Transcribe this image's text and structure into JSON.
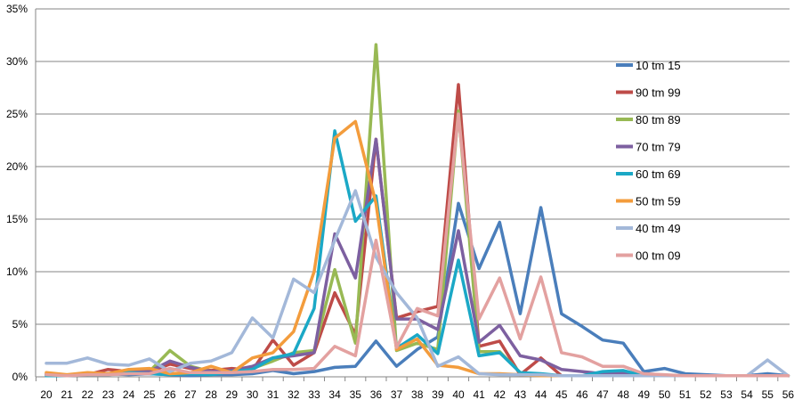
{
  "chart_data": {
    "type": "line",
    "title": "",
    "xlabel": "",
    "ylabel": "",
    "x": [
      20,
      21,
      22,
      23,
      24,
      25,
      26,
      27,
      28,
      29,
      30,
      31,
      32,
      33,
      34,
      35,
      36,
      37,
      38,
      39,
      40,
      41,
      42,
      43,
      44,
      45,
      46,
      47,
      48,
      49,
      50,
      51,
      52,
      53,
      54,
      55,
      56
    ],
    "ylim": [
      0,
      35
    ],
    "yticks": [
      0,
      5,
      10,
      15,
      20,
      25,
      30,
      35
    ],
    "ytick_suffix": "%",
    "grid": "horizontal",
    "legend_position": "right",
    "series": [
      {
        "name": "10 tm 15",
        "color": "#4a7ebb",
        "values": [
          0.2,
          0.1,
          0.3,
          0.3,
          0.2,
          0.3,
          0.2,
          0.1,
          0.2,
          0.2,
          0.3,
          0.6,
          0.3,
          0.5,
          0.9,
          1.0,
          3.4,
          1.0,
          2.6,
          3.8,
          16.5,
          10.3,
          14.7,
          6.0,
          16.1,
          6.0,
          4.8,
          3.5,
          3.2,
          0.5,
          0.8,
          0.3,
          0.2,
          0.1,
          0.1,
          0.3,
          0.1
        ]
      },
      {
        "name": "90 tm 99",
        "color": "#be4b48",
        "values": [
          0.3,
          0.1,
          0.2,
          0.7,
          0.5,
          0.5,
          1.2,
          0.8,
          0.6,
          0.8,
          0.6,
          3.5,
          1.1,
          2.3,
          8.0,
          4.0,
          22.6,
          5.6,
          6.2,
          6.7,
          27.8,
          2.9,
          3.4,
          0.2,
          1.8,
          0.1,
          0.1,
          0.1,
          0.1,
          0.1,
          0.1,
          0.1,
          0.1,
          0.1,
          0.1,
          0.1,
          0.1
        ]
      },
      {
        "name": "80 tm 89",
        "color": "#98b954",
        "values": [
          0.2,
          0.1,
          0.3,
          0.3,
          0.4,
          0.5,
          2.5,
          1.0,
          0.5,
          0.4,
          0.8,
          1.5,
          2.3,
          2.5,
          10.2,
          3.2,
          31.6,
          2.5,
          3.2,
          2.6,
          25.3,
          2.4,
          2.4,
          0.4,
          0.2,
          0.1,
          0.1,
          0.1,
          0.1,
          0.1,
          0.1,
          0.1,
          0.1,
          0.1,
          0.1,
          0.1,
          0.1
        ]
      },
      {
        "name": "70 tm 79",
        "color": "#7d60a0",
        "values": [
          0.2,
          0.1,
          0.3,
          0.3,
          0.5,
          0.5,
          1.5,
          0.9,
          0.5,
          0.6,
          1.0,
          1.8,
          2.0,
          2.3,
          13.6,
          9.4,
          22.6,
          5.5,
          5.5,
          4.5,
          13.9,
          3.3,
          4.9,
          2.0,
          1.6,
          0.7,
          0.5,
          0.3,
          0.4,
          0.1,
          0.1,
          0.1,
          0.1,
          0.1,
          0.1,
          0.1,
          0.1
        ]
      },
      {
        "name": "60 tm 69",
        "color": "#1ba8c6",
        "values": [
          0.1,
          0.1,
          0.2,
          0.2,
          0.4,
          0.3,
          0.2,
          0.3,
          0.2,
          0.5,
          0.7,
          1.8,
          2.2,
          6.5,
          23.4,
          14.8,
          17.2,
          2.7,
          4.0,
          2.2,
          11.1,
          2.0,
          2.3,
          0.4,
          0.3,
          0.1,
          0.1,
          0.5,
          0.6,
          0.1,
          0.1,
          0.1,
          0.1,
          0.1,
          0.1,
          0.1,
          0.1
        ]
      },
      {
        "name": "50 tm 59",
        "color": "#f39c3c",
        "values": [
          0.4,
          0.2,
          0.4,
          0.3,
          0.7,
          0.8,
          0.3,
          0.4,
          1.0,
          0.4,
          1.8,
          2.3,
          4.3,
          10.0,
          22.7,
          24.3,
          16.5,
          2.6,
          3.6,
          1.1,
          0.9,
          0.3,
          0.3,
          0.2,
          0.1,
          0.1,
          0.1,
          0.1,
          0.1,
          0.1,
          0.1,
          0.1,
          0.1,
          0.1,
          0.1,
          0.1,
          0.1
        ]
      },
      {
        "name": "40 tm 49",
        "color": "#a3b8d9",
        "values": [
          1.3,
          1.3,
          1.8,
          1.2,
          1.1,
          1.7,
          0.5,
          1.3,
          1.5,
          2.3,
          5.6,
          3.7,
          9.3,
          8.0,
          13.0,
          17.7,
          11.4,
          8.0,
          5.6,
          1.0,
          1.9,
          0.3,
          0.2,
          0.2,
          0.2,
          0.1,
          0.1,
          0.1,
          0.1,
          0.1,
          0.1,
          0.1,
          0.1,
          0.1,
          0.1,
          1.6,
          0.1
        ]
      },
      {
        "name": "00 tm 09",
        "color": "#e3a1a0",
        "values": [
          0.2,
          0.1,
          0.2,
          0.2,
          0.3,
          0.3,
          0.8,
          0.4,
          0.4,
          0.4,
          0.5,
          0.7,
          0.7,
          0.8,
          2.9,
          2.0,
          13.0,
          2.8,
          6.5,
          5.8,
          25.0,
          5.5,
          9.4,
          3.6,
          9.5,
          2.3,
          1.9,
          1.0,
          1.0,
          0.3,
          0.2,
          0.1,
          0.1,
          0.1,
          0.1,
          0.1,
          0.1
        ]
      }
    ]
  }
}
